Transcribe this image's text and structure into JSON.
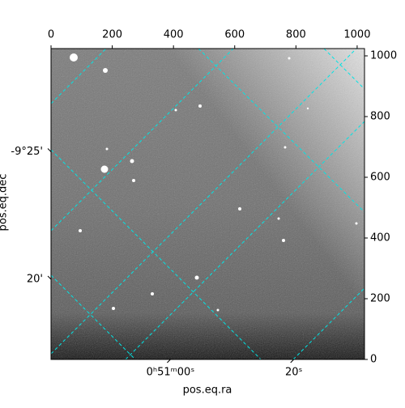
{
  "chart_data": {
    "type": "image",
    "xlabel": "pos.eq.ra",
    "ylabel": "pos.eq.dec",
    "xlim": [
      0,
      1024
    ],
    "ylim": [
      0,
      1024
    ],
    "xticks": [
      0,
      200,
      400,
      600,
      800,
      1000
    ],
    "yticks": [
      0,
      200,
      400,
      600,
      800,
      1000
    ],
    "ra_ticks": [
      {
        "value": 390,
        "label": "0ʰ51ᵐ00ˢ"
      },
      {
        "value": 793,
        "label": "20ˢ"
      }
    ],
    "dec_ticks": [
      {
        "value": 684,
        "label": "-9°25'"
      },
      {
        "value": 264,
        "label": "20'"
      }
    ],
    "grid": true,
    "grid_color": "#00e5e5"
  }
}
